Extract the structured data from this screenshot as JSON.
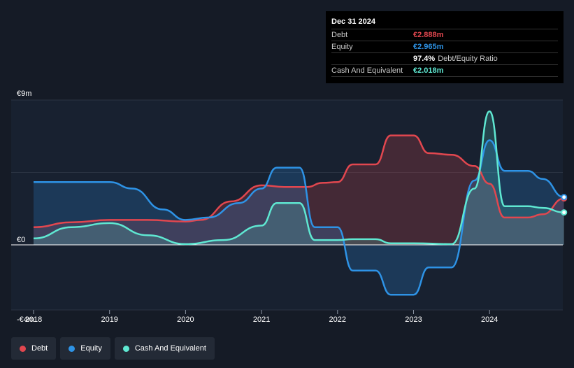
{
  "tooltip": {
    "date": "Dec 31 2024",
    "rows": [
      {
        "label": "Debt",
        "value": "€2.888m",
        "color": "#e2474f"
      },
      {
        "label": "Equity",
        "value": "€2.965m",
        "color": "#2e93e6"
      },
      {
        "label": "",
        "value": "97.4%",
        "sub": "Debt/Equity Ratio",
        "color": "#ffffff"
      },
      {
        "label": "Cash And Equivalent",
        "value": "€2.018m",
        "color": "#5fe8d2"
      }
    ]
  },
  "legend": [
    {
      "label": "Debt",
      "color": "#e2474f"
    },
    {
      "label": "Equity",
      "color": "#2e93e6"
    },
    {
      "label": "Cash And Equivalent",
      "color": "#5fe8d2"
    }
  ],
  "chart_data": {
    "type": "area",
    "x_ticks": [
      "2018",
      "2019",
      "2020",
      "2021",
      "2022",
      "2023",
      "2024"
    ],
    "y_tick_labels": [
      "€9m",
      "€0",
      "-€4m"
    ],
    "ylim": [
      -4,
      9
    ],
    "series": [
      {
        "name": "Debt",
        "color": "#e2474f",
        "points": [
          [
            2018.0,
            1.1
          ],
          [
            2018.5,
            1.4
          ],
          [
            2019.0,
            1.55
          ],
          [
            2019.5,
            1.55
          ],
          [
            2020.0,
            1.45
          ],
          [
            2020.2,
            1.55
          ],
          [
            2020.6,
            2.7
          ],
          [
            2021.0,
            3.7
          ],
          [
            2021.3,
            3.6
          ],
          [
            2021.6,
            3.6
          ],
          [
            2021.8,
            3.85
          ],
          [
            2022.0,
            3.9
          ],
          [
            2022.2,
            5.0
          ],
          [
            2022.5,
            5.0
          ],
          [
            2022.7,
            6.8
          ],
          [
            2023.0,
            6.8
          ],
          [
            2023.2,
            5.7
          ],
          [
            2023.5,
            5.6
          ],
          [
            2023.8,
            4.9
          ],
          [
            2024.0,
            3.8
          ],
          [
            2024.2,
            1.7
          ],
          [
            2024.5,
            1.7
          ],
          [
            2024.7,
            1.9
          ],
          [
            2024.98,
            2.888
          ]
        ]
      },
      {
        "name": "Equity",
        "color": "#2e93e6",
        "points": [
          [
            2018.0,
            3.9
          ],
          [
            2019.0,
            3.9
          ],
          [
            2019.3,
            3.5
          ],
          [
            2019.7,
            2.2
          ],
          [
            2020.0,
            1.55
          ],
          [
            2020.3,
            1.7
          ],
          [
            2020.7,
            2.6
          ],
          [
            2021.0,
            3.5
          ],
          [
            2021.2,
            4.8
          ],
          [
            2021.5,
            4.8
          ],
          [
            2021.7,
            1.1
          ],
          [
            2022.0,
            1.1
          ],
          [
            2022.2,
            -1.6
          ],
          [
            2022.5,
            -1.6
          ],
          [
            2022.7,
            -3.1
          ],
          [
            2023.0,
            -3.1
          ],
          [
            2023.2,
            -1.4
          ],
          [
            2023.5,
            -1.4
          ],
          [
            2023.8,
            4.0
          ],
          [
            2024.0,
            6.5
          ],
          [
            2024.2,
            4.6
          ],
          [
            2024.5,
            4.6
          ],
          [
            2024.7,
            4.1
          ],
          [
            2024.98,
            2.965
          ]
        ]
      },
      {
        "name": "Cash And Equivalent",
        "color": "#5fe8d2",
        "points": [
          [
            2018.0,
            0.4
          ],
          [
            2018.5,
            1.1
          ],
          [
            2019.0,
            1.35
          ],
          [
            2019.5,
            0.6
          ],
          [
            2020.0,
            0.05
          ],
          [
            2020.5,
            0.3
          ],
          [
            2021.0,
            1.2
          ],
          [
            2021.2,
            2.6
          ],
          [
            2021.5,
            2.6
          ],
          [
            2021.7,
            0.3
          ],
          [
            2022.0,
            0.3
          ],
          [
            2022.2,
            0.35
          ],
          [
            2022.5,
            0.35
          ],
          [
            2022.7,
            0.1
          ],
          [
            2023.0,
            0.1
          ],
          [
            2023.5,
            0.05
          ],
          [
            2023.8,
            3.5
          ],
          [
            2024.0,
            8.3
          ],
          [
            2024.2,
            2.4
          ],
          [
            2024.5,
            2.4
          ],
          [
            2024.7,
            2.3
          ],
          [
            2024.98,
            2.018
          ]
        ]
      }
    ]
  }
}
